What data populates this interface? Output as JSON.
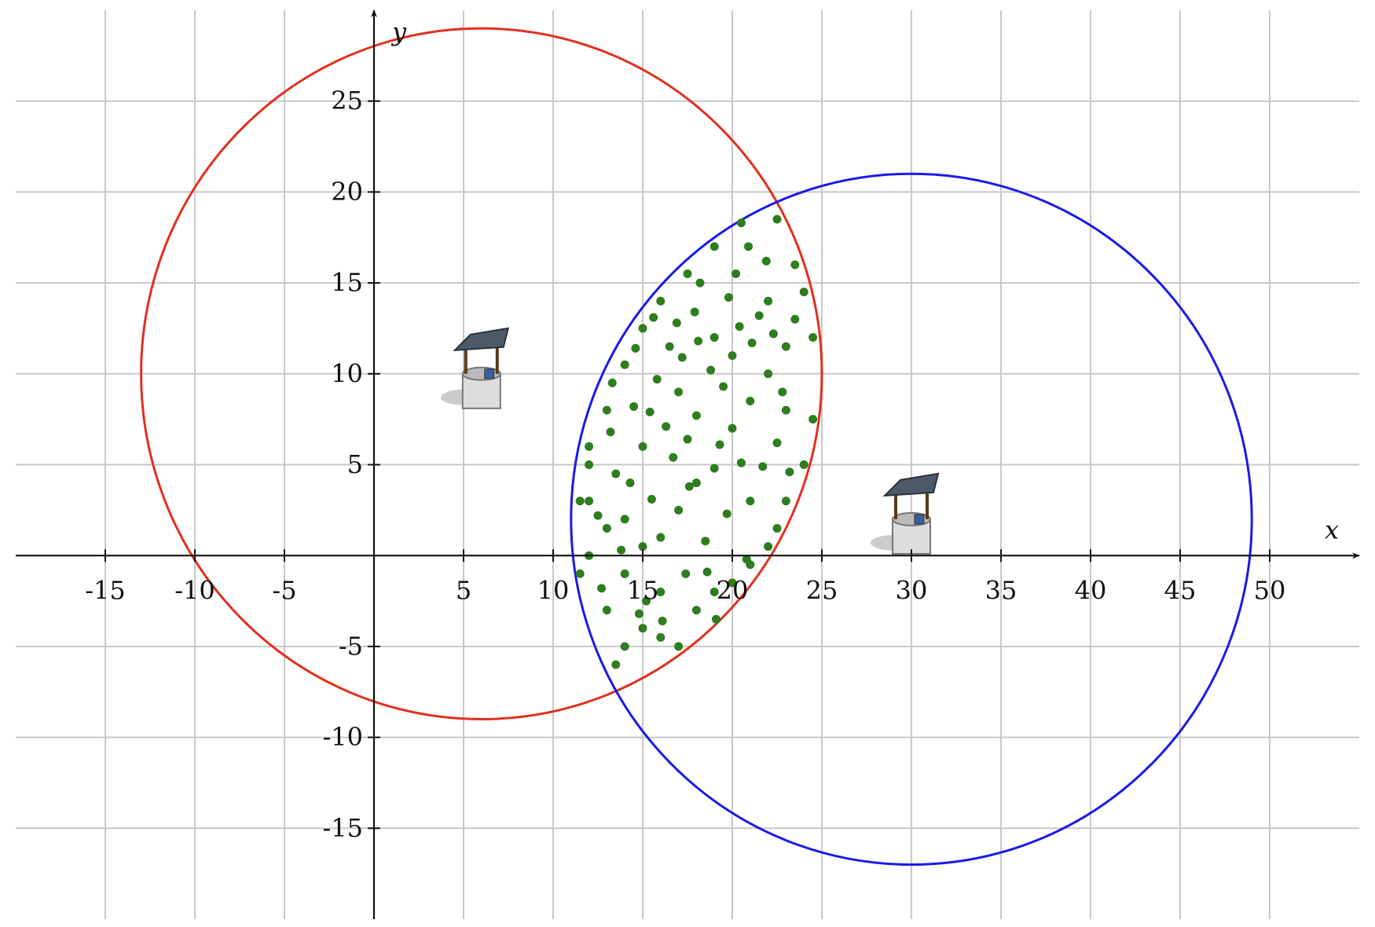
{
  "chart_data": {
    "type": "scatter",
    "x_label": "x",
    "y_label": "y",
    "xlim": [
      -20,
      55
    ],
    "ylim": [
      -20,
      30
    ],
    "xticks": [
      -15,
      -10,
      -5,
      5,
      10,
      15,
      20,
      25,
      30,
      35,
      40,
      45,
      50
    ],
    "yticks": [
      -15,
      -10,
      -5,
      5,
      10,
      15,
      20,
      25
    ],
    "grid": true,
    "circles": [
      {
        "center": [
          6,
          10
        ],
        "radius": 19,
        "color": "#e0301e"
      },
      {
        "center": [
          30,
          2
        ],
        "radius": 19,
        "color": "#1a1ae6"
      }
    ],
    "series": [
      {
        "color": "#2e7d1e",
        "x": [
          12,
          12,
          12,
          11.5,
          13,
          13.5,
          14,
          15,
          16,
          17,
          18,
          19,
          20,
          21,
          22,
          22.5,
          23,
          24,
          24.5,
          24.5,
          24,
          23.5,
          22.5,
          20.5,
          19,
          17.5,
          16,
          15,
          14,
          13,
          12,
          11.5,
          14,
          15,
          16,
          17,
          18,
          19,
          20,
          21,
          22,
          23,
          13.5,
          14.5,
          15.5,
          16.5,
          17.5,
          18.5,
          19.5,
          20.5,
          21.5,
          22.5,
          13,
          14,
          15,
          16,
          17,
          18,
          19,
          20,
          21,
          22,
          23,
          12.5,
          13.2,
          14.3,
          15.8,
          16.7,
          17.9,
          18.8,
          19.7,
          20.8,
          21.7,
          22.8,
          23.5,
          15.2,
          16.3,
          17.4,
          18.2,
          19.3,
          20.2,
          21.1,
          12.7,
          13.8,
          14.8,
          15.6,
          16.9,
          18.6,
          19.8,
          20.9,
          21.9,
          17.2,
          14.6,
          13.3,
          15.4,
          18.1,
          20.4,
          22.3,
          23.2,
          19.1,
          16.1,
          17.6
        ],
        "y": [
          0,
          3,
          5,
          -1,
          -3,
          -6,
          -5,
          -4,
          -4.5,
          -5,
          -3,
          -2,
          -1.5,
          -0.5,
          0.5,
          1.5,
          3,
          5,
          7.5,
          12,
          14.5,
          16,
          18.5,
          18.3,
          17,
          15.5,
          14,
          12.5,
          10.5,
          8,
          6,
          3,
          2,
          6,
          1,
          9,
          4,
          12,
          7,
          3,
          10,
          8,
          4.5,
          8.2,
          3.1,
          11.5,
          6.4,
          0.8,
          9.3,
          5.1,
          13.2,
          6.2,
          1.5,
          -1,
          0.5,
          -2,
          2.5,
          7.7,
          4.8,
          11,
          8.5,
          14,
          11.5,
          2.2,
          6.8,
          4,
          9.7,
          5.4,
          13.4,
          10.2,
          2.3,
          -0.2,
          4.9,
          9,
          13,
          -2.5,
          7.1,
          -1,
          15,
          6.1,
          15.5,
          11.7,
          -1.8,
          0.3,
          -3.2,
          13.1,
          12.8,
          -0.9,
          14.2,
          17,
          16.2,
          10.9,
          11.4,
          9.5,
          7.9,
          11.8,
          12.6,
          12.2,
          4.6,
          -3.5,
          -3.6,
          3.8
        ]
      }
    ]
  }
}
